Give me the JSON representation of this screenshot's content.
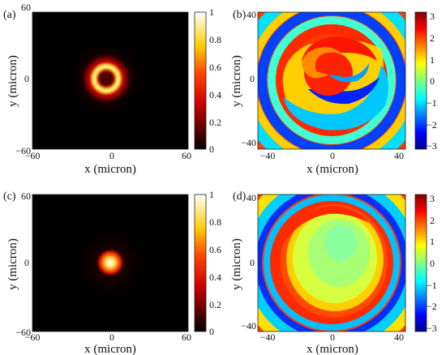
{
  "chart_data": [
    {
      "type": "heatmap",
      "panel_label": "(a)",
      "title": "",
      "xlabel": "x (micron)",
      "ylabel": "y (micron)",
      "xlim": [
        -60,
        60
      ],
      "ylim": [
        -60,
        60
      ],
      "x_ticks": [
        "−60",
        "0",
        "60"
      ],
      "y_ticks": [
        "60",
        "0",
        "−60"
      ],
      "colorbar": {
        "range": [
          0,
          1
        ],
        "ticks": [
          "1",
          "0.8",
          "0.6",
          "0.4",
          "0.2",
          "0"
        ],
        "colormap": "hot"
      },
      "pattern": "ring",
      "ring_center": [
        -3,
        3
      ],
      "ring_radius": 11
    },
    {
      "type": "heatmap",
      "panel_label": "(b)",
      "title": "",
      "xlabel": "x (micron)",
      "ylabel": "y (micron)",
      "xlim": [
        -40,
        40
      ],
      "ylim": [
        -40,
        40
      ],
      "x_ticks": [
        "−40",
        "0",
        "40"
      ],
      "y_ticks": [
        "40",
        "0",
        "−40"
      ],
      "colorbar": {
        "range": [
          -3,
          3
        ],
        "ticks": [
          "3",
          "2",
          "1",
          "0",
          "−1",
          "−2",
          "−3"
        ],
        "colormap": "jet"
      },
      "pattern": "spiral-phase"
    },
    {
      "type": "heatmap",
      "panel_label": "(c)",
      "title": "",
      "xlabel": "x (micron)",
      "ylabel": "y (micron)",
      "xlim": [
        -60,
        60
      ],
      "ylim": [
        -60,
        60
      ],
      "x_ticks": [
        "−60",
        "0",
        "60"
      ],
      "y_ticks": [
        "60",
        "0",
        "−60"
      ],
      "colorbar": {
        "range": [
          0,
          1
        ],
        "ticks": [
          "1",
          "0.8",
          "0.6",
          "0.4",
          "0.2",
          "0"
        ],
        "colormap": "hot"
      },
      "pattern": "spot",
      "spot_center": [
        -2,
        -2
      ]
    },
    {
      "type": "heatmap",
      "panel_label": "(d)",
      "title": "",
      "xlabel": "x (micron)",
      "ylabel": "y (micron)",
      "xlim": [
        -40,
        40
      ],
      "ylim": [
        -40,
        40
      ],
      "x_ticks": [
        "−40",
        "0",
        "40"
      ],
      "y_ticks": [
        "40",
        "0",
        "−40"
      ],
      "colorbar": {
        "range": [
          -3,
          3
        ],
        "ticks": [
          "3",
          "2",
          "1",
          "0",
          "−1",
          "−2",
          "−3"
        ],
        "colormap": "jet"
      },
      "pattern": "radial-phase"
    }
  ]
}
